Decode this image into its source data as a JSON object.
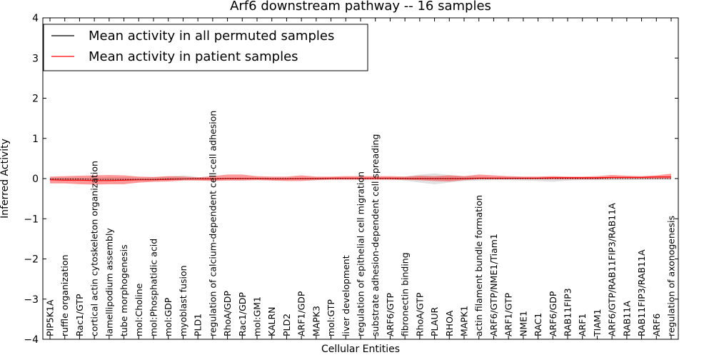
{
  "chart_data": {
    "type": "line",
    "title": "Arf6 downstream pathway -- 16 samples",
    "xlabel": "Cellular Entities",
    "ylabel": "Inferred Activity",
    "ylim": [
      -4,
      4
    ],
    "yticks": [
      4,
      3,
      2,
      1,
      0,
      -1,
      -2,
      -3,
      -4
    ],
    "ytick_labels": [
      "4",
      "3",
      "2",
      "1",
      "0",
      "−1",
      "−2",
      "−3",
      "−4"
    ],
    "grid": false,
    "legend_position": "top-left",
    "categories": [
      "PIP5K1A",
      "ruffle organization",
      "Rac1/GTP",
      "cortical actin cytoskeleton organization",
      "lamellipodium assembly",
      "tube morphogenesis",
      "mol:Choline",
      "mol:Phosphatidic acid",
      "mol:GDP",
      "myoblast fusion",
      "PLD1",
      "regulation of calcium-dependent cell-cell adhesion",
      "RhoA/GDP",
      "Rac1/GDP",
      "mol:GM1",
      "KALRN",
      "PLD2",
      "ARF1/GDP",
      "MAPK3",
      "mol:GTP",
      "liver development",
      "regulation of epithelial cell migration",
      "substrate adhesion-dependent cell spreading",
      "ARF6/GTP",
      "fibronectin binding",
      "RhoA/GTP",
      "PLAUR",
      "RHOA",
      "MAPK1",
      "actin filament bundle formation",
      "ARF6/GTP/NME1/Tiam1",
      "ARF1/GTP",
      "NME1",
      "RAC1",
      "ARF6/GDP",
      "RAB11FIP3",
      "ARF1",
      "TIAM1",
      "ARF6/GTP/RAB11FIP3/RAB11A",
      "RAB11A",
      "RAB11FIP3/RAB11A",
      "ARF6",
      "regulation of axonogenesis"
    ],
    "series": [
      {
        "name": "Mean activity in all permuted samples",
        "color": "#000000",
        "style": "dotted",
        "values": [
          -0.01,
          -0.01,
          -0.01,
          -0.02,
          -0.02,
          -0.02,
          -0.02,
          -0.02,
          -0.01,
          -0.01,
          0.0,
          0.0,
          0.0,
          0.0,
          0.0,
          0.0,
          0.0,
          0.0,
          0.0,
          0.0,
          0.0,
          0.0,
          0.0,
          0.0,
          0.0,
          0.0,
          0.0,
          0.0,
          0.0,
          0.0,
          0.0,
          0.0,
          0.0,
          0.0,
          0.0,
          0.0,
          0.0,
          0.0,
          0.0,
          0.0,
          0.0,
          0.0,
          0.0
        ],
        "band_lower": [
          -0.04,
          -0.04,
          -0.04,
          -0.05,
          -0.05,
          -0.04,
          -0.04,
          -0.04,
          -0.03,
          -0.02,
          -0.02,
          -0.03,
          -0.02,
          -0.02,
          -0.02,
          -0.02,
          -0.02,
          -0.03,
          -0.03,
          -0.02,
          -0.02,
          -0.02,
          -0.02,
          -0.02,
          -0.05,
          -0.1,
          -0.14,
          -0.1,
          -0.06,
          -0.05,
          -0.04,
          -0.04,
          -0.05,
          -0.06,
          -0.08,
          -0.05,
          -0.04,
          -0.04,
          -0.04,
          -0.04,
          -0.03,
          -0.03,
          -0.03
        ],
        "band_upper": [
          0.02,
          0.02,
          0.02,
          0.02,
          0.03,
          0.03,
          0.02,
          0.03,
          0.05,
          0.08,
          0.04,
          0.02,
          0.02,
          0.02,
          0.02,
          0.02,
          0.02,
          0.02,
          0.02,
          0.02,
          0.02,
          0.02,
          0.02,
          0.03,
          0.05,
          0.1,
          0.13,
          0.09,
          0.06,
          0.05,
          0.04,
          0.04,
          0.04,
          0.04,
          0.04,
          0.04,
          0.03,
          0.03,
          0.03,
          0.03,
          0.03,
          0.03,
          0.03
        ]
      },
      {
        "name": "Mean activity in patient samples",
        "color": "#ff0000",
        "style": "solid",
        "values": [
          -0.03,
          -0.04,
          -0.04,
          -0.05,
          -0.05,
          -0.04,
          -0.03,
          -0.03,
          -0.02,
          -0.01,
          -0.01,
          -0.01,
          0.0,
          0.0,
          0.0,
          -0.01,
          -0.01,
          0.0,
          0.0,
          0.01,
          0.01,
          0.01,
          0.01,
          0.01,
          0.0,
          0.0,
          0.0,
          0.0,
          0.0,
          0.01,
          0.01,
          0.01,
          0.01,
          0.01,
          0.02,
          0.02,
          0.02,
          0.02,
          0.03,
          0.03,
          0.03,
          0.04,
          0.04
        ],
        "band_lower": [
          -0.12,
          -0.12,
          -0.14,
          -0.15,
          -0.14,
          -0.14,
          -0.1,
          -0.08,
          -0.07,
          -0.05,
          -0.05,
          -0.06,
          -0.05,
          -0.05,
          -0.04,
          -0.05,
          -0.06,
          -0.06,
          -0.04,
          -0.03,
          -0.03,
          -0.03,
          -0.03,
          -0.03,
          -0.03,
          -0.04,
          -0.06,
          -0.07,
          -0.04,
          -0.02,
          -0.02,
          -0.02,
          -0.02,
          -0.02,
          -0.02,
          -0.02,
          -0.02,
          -0.02,
          -0.01,
          -0.01,
          -0.01,
          -0.01,
          -0.01
        ],
        "band_upper": [
          0.05,
          0.06,
          0.07,
          0.08,
          0.09,
          0.08,
          0.05,
          0.04,
          0.06,
          0.05,
          0.03,
          0.06,
          0.1,
          0.1,
          0.06,
          0.05,
          0.05,
          0.08,
          0.05,
          0.05,
          0.06,
          0.06,
          0.06,
          0.06,
          0.05,
          0.07,
          0.06,
          0.08,
          0.06,
          0.1,
          0.08,
          0.06,
          0.05,
          0.05,
          0.06,
          0.05,
          0.05,
          0.06,
          0.09,
          0.07,
          0.06,
          0.08,
          0.12
        ]
      }
    ]
  }
}
